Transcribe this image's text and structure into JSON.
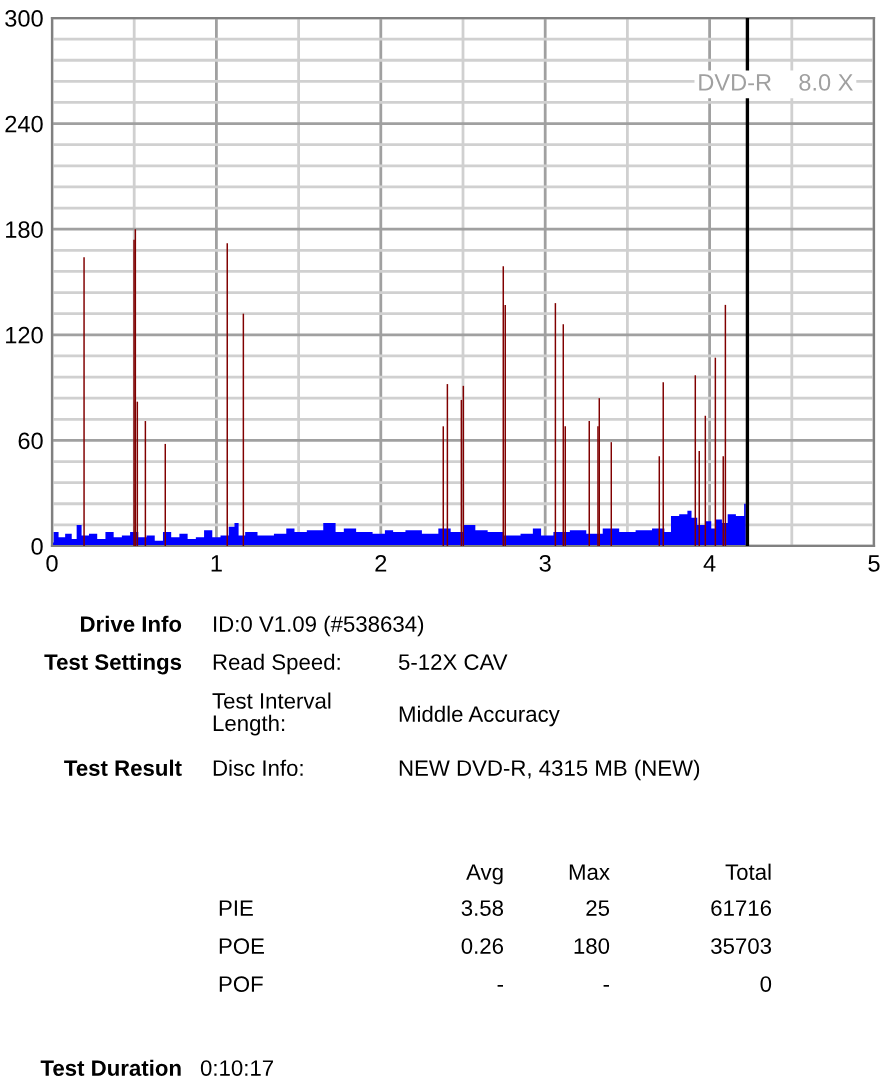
{
  "chart_data": [
    {
      "type": "bar",
      "annotations": [
        "DVD-R    8.0 X"
      ],
      "xlim": [
        0,
        5
      ],
      "ylim": [
        0,
        300
      ],
      "xticks": [
        0,
        {
          "value": 0.5,
          "label": null
        },
        1,
        {
          "value": 1.5,
          "label": null
        },
        2,
        {
          "value": 2.5,
          "label": null
        },
        3,
        {
          "value": 3.5,
          "label": null
        },
        4,
        {
          "value": 4.5,
          "label": null
        },
        5
      ],
      "yticks": [
        0,
        {
          "value": 12,
          "label": null
        },
        {
          "value": 24,
          "label": null
        },
        {
          "value": 36,
          "label": null
        },
        {
          "value": 48,
          "label": null
        },
        60,
        {
          "value": 72,
          "label": null
        },
        {
          "value": 84,
          "label": null
        },
        {
          "value": 96,
          "label": null
        },
        {
          "value": 108,
          "label": null
        },
        120,
        {
          "value": 132,
          "label": null
        },
        {
          "value": 144,
          "label": null
        },
        {
          "value": 156,
          "label": null
        },
        {
          "value": 168,
          "label": null
        },
        180,
        {
          "value": 192,
          "label": null
        },
        {
          "value": 204,
          "label": null
        },
        {
          "value": 216,
          "label": null
        },
        {
          "value": 228,
          "label": null
        },
        240,
        {
          "value": 252,
          "label": null
        },
        {
          "value": 264,
          "label": null
        },
        {
          "value": 276,
          "label": null
        },
        {
          "value": 288,
          "label": null
        },
        300
      ],
      "grid": true,
      "legend": false,
      "ref_lines": [
        {
          "axis": "x",
          "value": 4.23,
          "color": "#000000"
        }
      ],
      "series": [
        {
          "type": "area",
          "color": "#0000ff",
          "x": [
            0.0,
            0.02,
            0.06,
            0.1,
            0.14,
            0.16,
            0.2,
            0.25,
            0.3,
            0.35,
            0.4,
            0.45,
            0.5,
            0.55,
            0.6,
            0.65,
            0.7,
            0.75,
            0.8,
            0.85,
            0.9,
            0.95,
            1.0,
            1.05,
            1.1,
            1.12,
            1.15,
            1.2,
            1.3,
            1.4,
            1.45,
            1.5,
            1.6,
            1.7,
            1.75,
            1.8,
            1.9,
            2.0,
            2.05,
            2.1,
            2.2,
            2.3,
            2.4,
            2.45,
            2.55,
            2.6,
            2.7,
            2.8,
            2.9,
            2.95,
            3.0,
            3.1,
            3.2,
            3.3,
            3.4,
            3.5,
            3.6,
            3.7,
            3.75,
            3.78,
            3.85,
            3.88,
            3.9,
            3.95,
            4.0,
            4.02,
            4.05,
            4.1,
            4.12,
            4.2,
            4.22
          ],
          "values": [
            2,
            8,
            5,
            7,
            4,
            12,
            6,
            7,
            4,
            8,
            5,
            6,
            8,
            5,
            6,
            3,
            8,
            5,
            7,
            4,
            5,
            9,
            5,
            6,
            11,
            13,
            6,
            8,
            6,
            7,
            10,
            8,
            9,
            13,
            8,
            10,
            8,
            7,
            9,
            8,
            9,
            7,
            10,
            8,
            12,
            9,
            8,
            6,
            7,
            10,
            6,
            8,
            9,
            7,
            10,
            8,
            9,
            10,
            8,
            17,
            18,
            20,
            16,
            12,
            14,
            10,
            15,
            13,
            18,
            17,
            24
          ]
        },
        {
          "type": "bar",
          "color": "#800000",
          "x": [
            0.195,
            0.499,
            0.507,
            0.519,
            0.568,
            0.689,
            1.066,
            1.164,
            2.38,
            2.405,
            2.49,
            2.502,
            2.745,
            2.757,
            3.062,
            3.11,
            3.122,
            3.268,
            3.321,
            3.329,
            3.402,
            3.694,
            3.718,
            3.913,
            3.937,
            3.974,
            4.035,
            4.083,
            4.096
          ],
          "values": [
            164,
            174,
            180,
            82,
            71,
            58,
            172,
            132,
            68,
            92,
            83,
            91,
            159,
            137,
            138,
            126,
            68,
            71,
            68,
            84,
            59,
            51,
            93,
            97,
            54,
            74,
            107,
            51,
            137
          ]
        }
      ]
    },
    {
      "type": "other",
      "annotations": [
        "Drive Info",
        "ID:0 V1.09 (#538634)",
        "Test Settings",
        "Read Speed:",
        "5-12X CAV",
        "Test Interval\nLength:",
        "Middle Accuracy",
        "Test Result",
        "Disc Info:",
        "NEW DVD-R, 4315 MB (NEW)",
        "Avg",
        "Max",
        "Total",
        "PIE",
        "3.58",
        "25",
        "61716",
        "POE",
        "0.26",
        "180",
        "35703",
        "POF",
        "-",
        "-",
        "0",
        "Test Duration",
        "0:10:17"
      ]
    }
  ]
}
